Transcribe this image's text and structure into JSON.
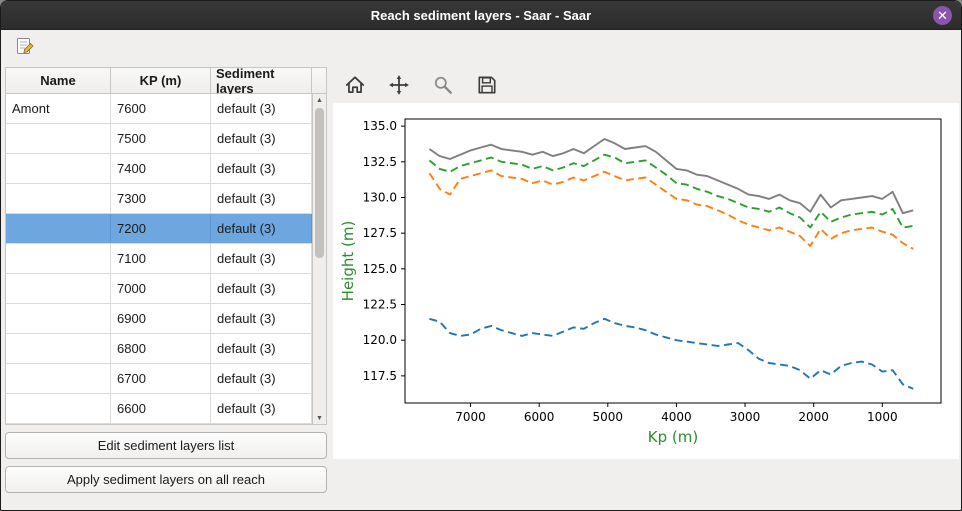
{
  "window": {
    "title": "Reach sediment layers - Saar - Saar",
    "close_glyph": "✕"
  },
  "toolbar": {
    "icons": [
      {
        "name": "edit-sediment-icon"
      }
    ]
  },
  "table": {
    "headers": [
      "Name",
      "KP (m)",
      "Sediment layers"
    ],
    "selected_index": 4,
    "rows": [
      {
        "name": "Amont",
        "kp": "7600",
        "layers": "default (3)"
      },
      {
        "name": "",
        "kp": "7500",
        "layers": "default (3)"
      },
      {
        "name": "",
        "kp": "7400",
        "layers": "default (3)"
      },
      {
        "name": "",
        "kp": "7300",
        "layers": "default (3)"
      },
      {
        "name": "",
        "kp": "7200",
        "layers": "default (3)"
      },
      {
        "name": "",
        "kp": "7100",
        "layers": "default (3)"
      },
      {
        "name": "",
        "kp": "7000",
        "layers": "default (3)"
      },
      {
        "name": "",
        "kp": "6900",
        "layers": "default (3)"
      },
      {
        "name": "",
        "kp": "6800",
        "layers": "default (3)"
      },
      {
        "name": "",
        "kp": "6700",
        "layers": "default (3)"
      },
      {
        "name": "",
        "kp": "6600",
        "layers": "default (3)"
      }
    ]
  },
  "buttons": {
    "edit_list": "Edit sediment layers list",
    "apply_all": "Apply sediment layers on all reach"
  },
  "mpl_toolbar": {
    "icons": [
      "home-icon",
      "pan-icon",
      "zoom-icon",
      "save-icon"
    ]
  },
  "chart_data": {
    "type": "line",
    "xlabel": "Kp (m)",
    "ylabel": "Height (m)",
    "axis_label_color": "#2e8b2e",
    "x_inverted": true,
    "grid": false,
    "legend": "none",
    "xlim": [
      7955,
      145
    ],
    "ylim": [
      115.6,
      135.5
    ],
    "x_ticks": [
      7000,
      6000,
      5000,
      4000,
      3000,
      2000,
      1000
    ],
    "y_ticks": [
      117.5,
      120.0,
      122.5,
      125.0,
      127.5,
      130.0,
      132.5,
      135.0
    ],
    "x": [
      7600,
      7450,
      7300,
      7150,
      7000,
      6850,
      6700,
      6550,
      6400,
      6250,
      6100,
      5950,
      5800,
      5650,
      5500,
      5350,
      5200,
      5050,
      4900,
      4750,
      4600,
      4450,
      4300,
      4150,
      4000,
      3850,
      3700,
      3550,
      3400,
      3250,
      3100,
      2950,
      2800,
      2650,
      2500,
      2350,
      2200,
      2050,
      1900,
      1750,
      1600,
      1450,
      1300,
      1150,
      1000,
      850,
      700,
      550
    ],
    "series": [
      {
        "name": "gray-solid-line",
        "color": "#7f7f7f",
        "style": "solid",
        "values": [
          133.4,
          132.9,
          132.7,
          133.0,
          133.3,
          133.5,
          133.7,
          133.4,
          133.3,
          133.2,
          133.0,
          133.2,
          132.9,
          133.1,
          133.4,
          133.1,
          133.6,
          134.1,
          133.8,
          133.4,
          133.5,
          133.6,
          133.2,
          132.6,
          132.0,
          131.9,
          131.6,
          131.5,
          131.2,
          130.9,
          130.6,
          130.2,
          130.1,
          129.9,
          130.2,
          129.8,
          129.6,
          129.0,
          130.2,
          129.3,
          129.8,
          129.9,
          130.0,
          130.1,
          129.9,
          130.4,
          128.9,
          129.1
        ]
      },
      {
        "name": "green-dashed-line",
        "color": "#2ca02c",
        "style": "dashed",
        "values": [
          132.6,
          132.0,
          131.8,
          132.2,
          132.4,
          132.6,
          132.8,
          132.5,
          132.4,
          132.3,
          132.0,
          132.2,
          131.9,
          132.1,
          132.4,
          132.2,
          132.6,
          133.0,
          132.8,
          132.4,
          132.5,
          132.6,
          132.1,
          131.6,
          131.0,
          130.9,
          130.6,
          130.4,
          130.1,
          129.9,
          129.6,
          129.3,
          129.2,
          129.0,
          129.3,
          128.9,
          128.6,
          127.9,
          129.0,
          128.3,
          128.6,
          128.8,
          128.9,
          129.0,
          128.8,
          129.2,
          127.9,
          128.0
        ]
      },
      {
        "name": "orange-dashed-line",
        "color": "#ff7f0e",
        "style": "dashed",
        "values": [
          131.7,
          130.6,
          130.2,
          131.3,
          131.5,
          131.7,
          131.9,
          131.5,
          131.4,
          131.3,
          131.0,
          131.2,
          130.9,
          131.1,
          131.4,
          131.2,
          131.5,
          131.8,
          131.5,
          131.2,
          131.3,
          131.4,
          130.9,
          130.4,
          129.9,
          129.8,
          129.5,
          129.4,
          129.1,
          128.8,
          128.4,
          128.1,
          127.9,
          127.7,
          127.9,
          127.6,
          127.3,
          126.6,
          127.8,
          127.1,
          127.5,
          127.7,
          127.8,
          127.9,
          127.6,
          127.4,
          126.8,
          126.4
        ]
      },
      {
        "name": "blue-dashed-line",
        "color": "#1f77b4",
        "style": "dashed",
        "values": [
          121.5,
          121.3,
          120.5,
          120.3,
          120.4,
          120.8,
          121.0,
          120.7,
          120.5,
          120.3,
          120.5,
          120.4,
          120.3,
          120.6,
          120.9,
          120.8,
          121.2,
          121.5,
          121.2,
          121.0,
          120.9,
          120.7,
          120.4,
          120.2,
          120.0,
          119.9,
          119.8,
          119.7,
          119.6,
          119.7,
          119.8,
          119.3,
          118.7,
          118.4,
          118.3,
          118.2,
          117.9,
          117.3,
          117.9,
          117.6,
          118.2,
          118.4,
          118.5,
          118.3,
          117.8,
          117.9,
          116.9,
          116.6
        ]
      }
    ]
  }
}
